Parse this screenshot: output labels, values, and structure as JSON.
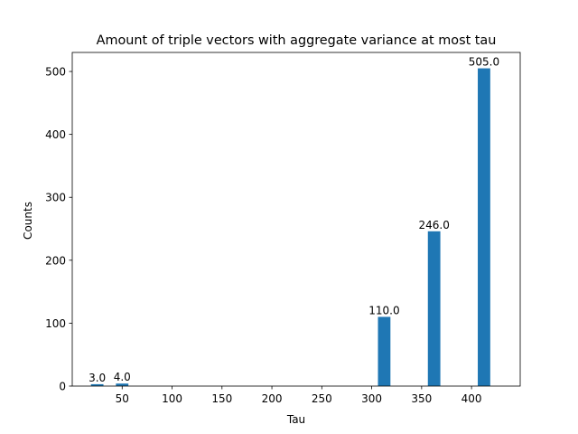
{
  "chart_data": {
    "type": "bar",
    "title": "Amount of triple vectors with aggregate variance at most tau",
    "xlabel": "Tau",
    "ylabel": "Counts",
    "bar_color": "#1f77b4",
    "bar_width": 12.5,
    "x": [
      25,
      50,
      312.5,
      362.5,
      412.5
    ],
    "values": [
      3,
      4,
      110,
      246,
      505
    ],
    "value_labels": [
      "3.0",
      "4.0",
      "110.0",
      "246.0",
      "505.0"
    ],
    "xlim": [
      0,
      448.75
    ],
    "ylim": [
      0,
      530.25
    ],
    "xticks": [
      50,
      100,
      150,
      200,
      250,
      300,
      350,
      400
    ],
    "xtick_labels": [
      "50",
      "100",
      "150",
      "200",
      "250",
      "300",
      "350",
      "400"
    ],
    "yticks": [
      0,
      100,
      200,
      300,
      400,
      500
    ],
    "ytick_labels": [
      "0",
      "100",
      "200",
      "300",
      "400",
      "500"
    ],
    "grid": false,
    "legend": "none"
  }
}
